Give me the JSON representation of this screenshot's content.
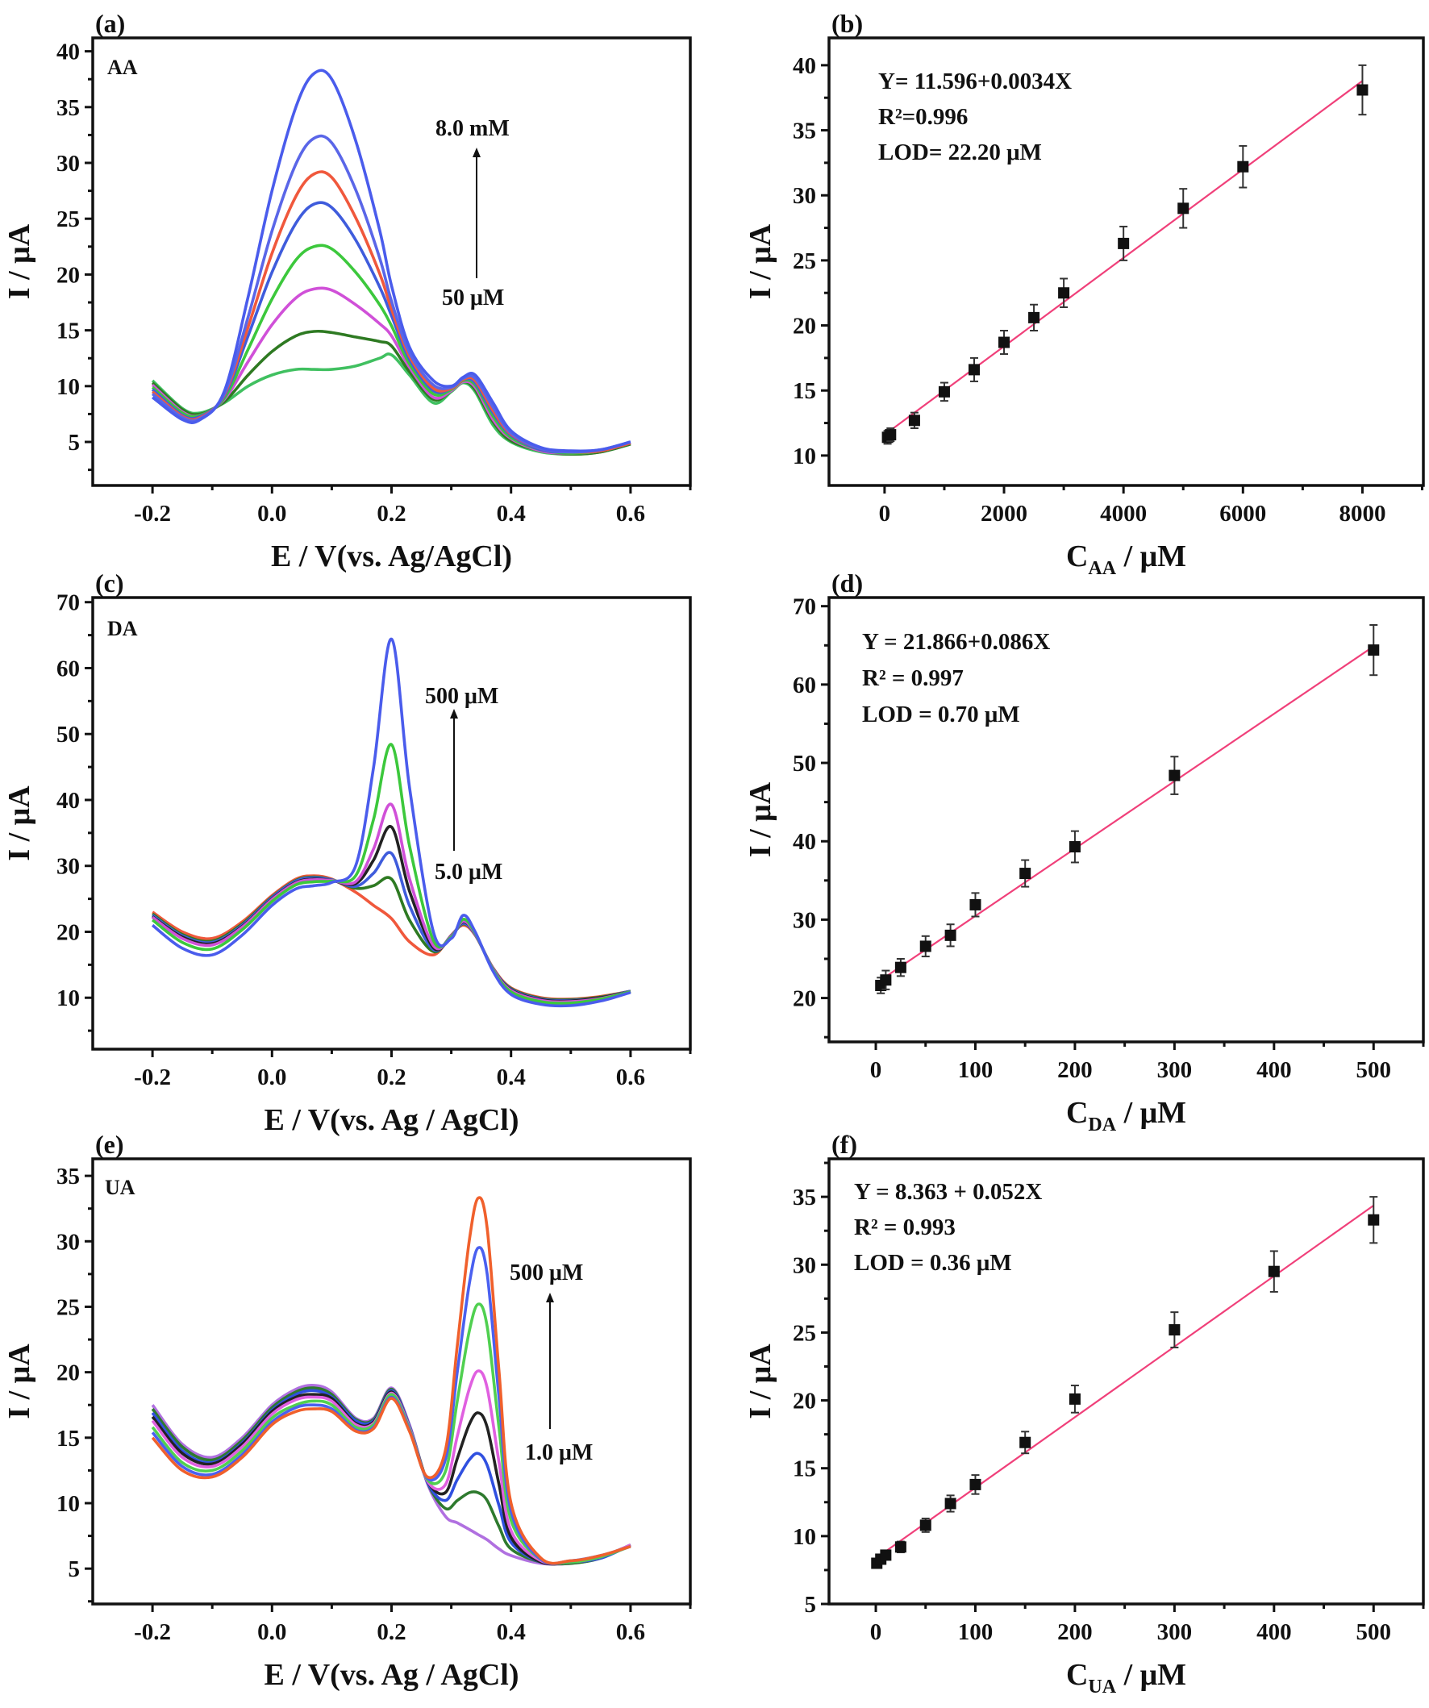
{
  "colors": {
    "fit_line": "#f0407a",
    "marker": "#111111",
    "frame": "#111111"
  },
  "chart_data": [
    {
      "panel": "(a)",
      "type": "line",
      "annotation": "AA",
      "xlabel": "E / V(vs. Ag/AgCl)",
      "ylabel": "I / μA",
      "xlim": [
        -0.3,
        0.7
      ],
      "ylim": [
        1.1,
        41.2
      ],
      "xticks": [
        -0.2,
        0.0,
        0.2,
        0.4,
        0.6
      ],
      "xtick_labels": [
        "-0.2",
        "0.0",
        "0.2",
        "0.4",
        "0.6"
      ],
      "yticks": [
        5,
        10,
        15,
        20,
        25,
        30,
        35,
        40
      ],
      "ytick_labels": [
        "5",
        "10",
        "15",
        "20",
        "25",
        "30",
        "35",
        "40"
      ],
      "arrow_top_label": "8.0 mM",
      "arrow_bottom_label": "50 μM",
      "x": [
        -0.2,
        -0.15,
        -0.12,
        -0.08,
        -0.04,
        0,
        0.04,
        0.07,
        0.1,
        0.14,
        0.18,
        0.2,
        0.23,
        0.27,
        0.3,
        0.32,
        0.34,
        0.37,
        0.4,
        0.45,
        0.5,
        0.55,
        0.6
      ],
      "series": [
        {
          "color": "#4a5cec",
          "y": [
            9,
            7,
            7,
            9.5,
            18,
            27.5,
            35,
            38,
            37.5,
            32,
            24,
            19,
            13.5,
            10.5,
            10,
            10.8,
            11,
            8.5,
            6,
            4.5,
            4.2,
            4.3,
            5
          ]
        },
        {
          "color": "#5a66e8",
          "y": [
            9.3,
            7.2,
            7.1,
            9.3,
            16.2,
            23.9,
            29.9,
            32.2,
            31.8,
            27.6,
            21.5,
            17.6,
            13,
            10.1,
            9.9,
            10.7,
            10.7,
            8.1,
            5.8,
            4.4,
            4.1,
            4.3,
            5
          ]
        },
        {
          "color": "#f0583c",
          "y": [
            9.5,
            7.3,
            7.2,
            9.2,
            15.3,
            21.9,
            27,
            29,
            28.7,
            25.1,
            20.1,
            16.9,
            12.7,
            9.8,
            9.8,
            10.6,
            10.5,
            7.8,
            5.7,
            4.4,
            4.1,
            4.2,
            4.9
          ]
        },
        {
          "color": "#3f5cdc",
          "y": [
            9.7,
            7.4,
            7.3,
            9.1,
            14.5,
            20.2,
            24.6,
            26.3,
            26,
            23.1,
            18.9,
            16.3,
            12.4,
            9.6,
            9.8,
            10.6,
            10.3,
            7.6,
            5.6,
            4.3,
            4.1,
            4.2,
            4.9
          ]
        },
        {
          "color": "#3cc83c",
          "y": [
            9.9,
            7.6,
            7.4,
            8.9,
            13.3,
            17.8,
            21.3,
            22.5,
            22.3,
            20.2,
            17.3,
            15.4,
            12,
            9.3,
            9.7,
            10.5,
            10.1,
            7.3,
            5.4,
            4.3,
            4,
            4.2,
            4.9
          ]
        },
        {
          "color": "#d050d8",
          "y": [
            10.1,
            7.7,
            7.4,
            8.8,
            12.2,
            15.5,
            17.9,
            18.7,
            18.6,
            17.3,
            15.6,
            14.5,
            11.7,
            9,
            9.6,
            10.4,
            9.9,
            7,
            5.3,
            4.2,
            4,
            4.2,
            4.9
          ]
        },
        {
          "color": "#2e7a22",
          "y": [
            10.3,
            7.9,
            7.5,
            8.6,
            11,
            13.1,
            14.5,
            14.9,
            14.8,
            14.4,
            14,
            13.6,
            11.3,
            8.8,
            9.6,
            10.4,
            9.7,
            6.8,
            5.1,
            4.2,
            3.9,
            4.1,
            4.8
          ]
        },
        {
          "color": "#40c060",
          "y": [
            10.5,
            8,
            7.6,
            8.5,
            10,
            11,
            11.5,
            11.5,
            11.5,
            11.8,
            12.5,
            12.8,
            11,
            8.5,
            9.5,
            10.3,
            9.5,
            6.5,
            5,
            4.1,
            3.9,
            4.1,
            4.8
          ]
        }
      ]
    },
    {
      "panel": "(b)",
      "type": "scatter",
      "xlabel": {
        "main": "C",
        "sub": "AA",
        "suffix": " / μM"
      },
      "ylabel": "I / μA",
      "xlim": [
        -930,
        9020
      ],
      "ylim": [
        7.7,
        42.1
      ],
      "xticks": [
        0,
        2000,
        4000,
        6000,
        8000
      ],
      "xtick_labels": [
        "0",
        "2000",
        "4000",
        "6000",
        "8000"
      ],
      "yticks": [
        10,
        15,
        20,
        25,
        30,
        35,
        40
      ],
      "ytick_labels": [
        "10",
        "15",
        "20",
        "25",
        "30",
        "35",
        "40"
      ],
      "equation": [
        "Y= 11.596+0.0034X",
        "R²=0.996",
        "LOD= 22.20 μM"
      ],
      "fit": {
        "intercept": 11.596,
        "slope": 0.0034,
        "x_range": [
          0,
          8000
        ]
      },
      "x": [
        50,
        100,
        500,
        1000,
        1500,
        2000,
        2500,
        3000,
        4000,
        5000,
        6000,
        8000
      ],
      "y": [
        11.4,
        11.6,
        12.7,
        14.9,
        16.6,
        18.7,
        20.6,
        22.5,
        26.3,
        29.0,
        32.2,
        38.1
      ],
      "err": [
        0.5,
        0.5,
        0.6,
        0.7,
        0.9,
        0.9,
        1.0,
        1.1,
        1.3,
        1.5,
        1.6,
        1.9
      ]
    },
    {
      "panel": "(c)",
      "type": "line",
      "annotation": "DA",
      "xlabel": "E / V(vs. Ag / AgCl)",
      "ylabel": "I / μA",
      "xlim": [
        -0.3,
        0.7
      ],
      "ylim": [
        2.2,
        70.7
      ],
      "xticks": [
        -0.2,
        0.0,
        0.2,
        0.4,
        0.6
      ],
      "xtick_labels": [
        "-0.2",
        "0.0",
        "0.2",
        "0.4",
        "0.6"
      ],
      "yticks": [
        10,
        20,
        30,
        40,
        50,
        60,
        70
      ],
      "ytick_labels": [
        "10",
        "20",
        "30",
        "40",
        "50",
        "60",
        "70"
      ],
      "arrow_top_label": "500 μM",
      "arrow_bottom_label": "5.0 μM",
      "x": [
        -0.2,
        -0.15,
        -0.1,
        -0.05,
        0,
        0.04,
        0.07,
        0.1,
        0.14,
        0.17,
        0.2,
        0.23,
        0.27,
        0.3,
        0.32,
        0.34,
        0.37,
        0.4,
        0.45,
        0.5,
        0.55,
        0.6
      ],
      "series": [
        {
          "color": "#4a5cec",
          "y": [
            21,
            17.5,
            16.5,
            19.5,
            24,
            26.5,
            27,
            27.5,
            30,
            45,
            64.4,
            42,
            20,
            19,
            22.5,
            20,
            14,
            10.5,
            9,
            8.8,
            9.5,
            10.8
          ]
        },
        {
          "color": "#3cc83c",
          "y": [
            21.8,
            18.4,
            17.4,
            20.3,
            24.6,
            27.1,
            27.6,
            27.7,
            28.5,
            37.1,
            48.4,
            33.1,
            18.7,
            19.2,
            21.9,
            19.8,
            14.2,
            10.9,
            9.4,
            9.2,
            9.8,
            10.9
          ]
        },
        {
          "color": "#d050d8",
          "y": [
            22.2,
            19,
            18,
            20.7,
            24.9,
            27.4,
            27.9,
            27.8,
            27.6,
            32.6,
            39.3,
            28.1,
            17.9,
            19.3,
            21.6,
            19.7,
            14.3,
            11.1,
            9.6,
            9.4,
            9.9,
            10.9
          ]
        },
        {
          "color": "#222222",
          "y": [
            22.3,
            19.2,
            18.2,
            20.8,
            25,
            27.5,
            28,
            27.8,
            27.3,
            30.9,
            35.9,
            26.2,
            17.6,
            19.3,
            21.5,
            19.7,
            14.3,
            11.2,
            9.7,
            9.5,
            10,
            10.9
          ]
        },
        {
          "color": "#3f5cdc",
          "y": [
            22.5,
            19.4,
            18.4,
            21,
            25.2,
            27.7,
            28.2,
            27.9,
            26.9,
            28.9,
            31.9,
            24,
            17.3,
            19.4,
            21.3,
            19.6,
            14.4,
            11.3,
            9.8,
            9.6,
            10,
            11
          ]
        },
        {
          "color": "#2e7a22",
          "y": [
            22.7,
            19.6,
            18.6,
            21.2,
            25.3,
            27.8,
            28.3,
            27.9,
            26.6,
            27,
            28,
            21.8,
            17,
            19.4,
            21.2,
            19.6,
            14.4,
            11.4,
            9.9,
            9.7,
            10.1,
            11
          ]
        },
        {
          "color": "#f0583c",
          "y": [
            23,
            20,
            19,
            21.5,
            25.5,
            28,
            28.5,
            28,
            26,
            24,
            22,
            18.5,
            16.5,
            19.5,
            21,
            19.5,
            14.5,
            11.5,
            10,
            9.8,
            10.2,
            11
          ]
        }
      ]
    },
    {
      "panel": "(d)",
      "type": "scatter",
      "xlabel": {
        "main": "C",
        "sub": "DA",
        "suffix": " / μM"
      },
      "ylabel": "I / μA",
      "xlim": [
        -47,
        550
      ],
      "ylim": [
        14.4,
        71.1
      ],
      "xticks": [
        0,
        100,
        200,
        300,
        400,
        500
      ],
      "xtick_labels": [
        "0",
        "100",
        "200",
        "300",
        "400",
        "500"
      ],
      "yticks": [
        20,
        30,
        40,
        50,
        60,
        70
      ],
      "ytick_labels": [
        "20",
        "30",
        "40",
        "50",
        "60",
        "70"
      ],
      "equation": [
        "Y = 21.866+0.086X",
        "R² = 0.997",
        "LOD = 0.70 μM"
      ],
      "fit": {
        "intercept": 21.866,
        "slope": 0.086,
        "x_range": [
          5,
          500
        ]
      },
      "x": [
        5,
        10,
        25,
        50,
        75,
        100,
        150,
        200,
        300,
        500
      ],
      "y": [
        21.6,
        22.3,
        23.9,
        26.6,
        28.0,
        31.9,
        35.9,
        39.3,
        48.4,
        64.4
      ],
      "err": [
        1.0,
        1.2,
        1.1,
        1.3,
        1.4,
        1.5,
        1.7,
        2.0,
        2.4,
        3.2
      ]
    },
    {
      "panel": "(e)",
      "type": "line",
      "annotation": "UA",
      "xlabel": "E / V(vs. Ag / AgCl)",
      "ylabel": "I / μA",
      "xlim": [
        -0.3,
        0.7
      ],
      "ylim": [
        2.3,
        36.3
      ],
      "xticks": [
        -0.2,
        0.0,
        0.2,
        0.4,
        0.6
      ],
      "xtick_labels": [
        "-0.2",
        "0.0",
        "0.2",
        "0.4",
        "0.6"
      ],
      "yticks": [
        5,
        10,
        15,
        20,
        25,
        30,
        35
      ],
      "ytick_labels": [
        "5",
        "10",
        "15",
        "20",
        "25",
        "30",
        "35"
      ],
      "arrow_top_label": "500 μM",
      "arrow_bottom_label": "1.0 μM",
      "x": [
        -0.2,
        -0.15,
        -0.1,
        -0.05,
        0,
        0.04,
        0.07,
        0.1,
        0.14,
        0.17,
        0.2,
        0.23,
        0.26,
        0.29,
        0.31,
        0.33,
        0.345,
        0.36,
        0.38,
        0.4,
        0.45,
        0.5,
        0.55,
        0.6
      ],
      "series": [
        {
          "color": "#f0602c",
          "y": [
            15,
            12.5,
            12,
            13.5,
            16,
            17,
            17.2,
            17,
            15.5,
            15.7,
            18,
            15.5,
            12,
            14,
            22,
            30,
            33.3,
            31,
            20,
            10,
            5.8,
            5.6,
            6,
            6.7
          ]
        },
        {
          "color": "#4a60f0",
          "y": [
            15.4,
            12.8,
            12.2,
            13.7,
            16.2,
            17.3,
            17.5,
            17.2,
            15.6,
            15.8,
            18.1,
            15.6,
            11.9,
            13.3,
            20,
            26.7,
            29.5,
            27.5,
            18,
            9.4,
            5.7,
            5.6,
            6,
            6.7
          ]
        },
        {
          "color": "#50d050",
          "y": [
            15.8,
            13.1,
            12.5,
            14,
            16.5,
            17.5,
            17.8,
            17.5,
            15.8,
            16,
            18.3,
            15.7,
            11.8,
            12.4,
            17.8,
            23.1,
            25.2,
            23.5,
            15.7,
            8.7,
            5.7,
            5.5,
            5.9,
            6.7
          ]
        },
        {
          "color": "#e060e0",
          "y": [
            16.3,
            13.5,
            12.8,
            14.3,
            16.8,
            17.9,
            18.1,
            17.8,
            16,
            16.1,
            18.4,
            15.8,
            11.7,
            11.4,
            15.1,
            18.7,
            20.1,
            18.8,
            13.1,
            7.9,
            5.6,
            5.5,
            5.9,
            6.8
          ]
        },
        {
          "color": "#222222",
          "y": [
            16.6,
            13.8,
            13,
            14.5,
            17,
            18.1,
            18.3,
            18,
            16.1,
            16.2,
            18.5,
            15.8,
            11.7,
            10.8,
            13.4,
            16,
            16.9,
            15.8,
            11.4,
            7.4,
            5.5,
            5.5,
            5.9,
            6.8
          ]
        },
        {
          "color": "#3050e0",
          "y": [
            16.9,
            14,
            13.1,
            14.6,
            17.1,
            18.3,
            18.6,
            18.1,
            16.3,
            16.3,
            18.6,
            15.9,
            11.6,
            10.2,
            11.8,
            13.3,
            13.8,
            12.9,
            9.8,
            7,
            5.5,
            5.5,
            5.8,
            6.8
          ]
        },
        {
          "color": "#2e7a2e",
          "y": [
            17.2,
            14.3,
            13.3,
            14.8,
            17.3,
            18.5,
            18.8,
            18.3,
            16.4,
            16.4,
            18.7,
            15.9,
            11.6,
            9.6,
            10.2,
            10.8,
            10.8,
            10.2,
            8.2,
            6.5,
            5.5,
            5.4,
            5.8,
            6.8
          ]
        },
        {
          "color": "#b070e0",
          "y": [
            17.5,
            14.5,
            13.5,
            15,
            17.5,
            18.7,
            19,
            18.5,
            16.5,
            16.5,
            18.8,
            16,
            11.5,
            9,
            8.5,
            8,
            7.6,
            7.2,
            6.5,
            6,
            5.4,
            5.4,
            5.8,
            6.8
          ]
        }
      ]
    },
    {
      "panel": "(f)",
      "type": "scatter",
      "xlabel": {
        "main": "C",
        "sub": "UA",
        "suffix": " / μM"
      },
      "ylabel": "I / μA",
      "xlim": [
        -47,
        550
      ],
      "ylim": [
        5,
        37.8
      ],
      "xticks": [
        0,
        100,
        200,
        300,
        400,
        500
      ],
      "xtick_labels": [
        "0",
        "100",
        "200",
        "300",
        "400",
        "500"
      ],
      "yticks": [
        5,
        10,
        15,
        20,
        25,
        30,
        35
      ],
      "ytick_labels": [
        "5",
        "10",
        "15",
        "20",
        "25",
        "30",
        "35"
      ],
      "equation": [
        "Y = 8.363 + 0.052X",
        "R² = 0.993",
        "LOD = 0.36 μM"
      ],
      "fit": {
        "intercept": 8.363,
        "slope": 0.052,
        "x_range": [
          1,
          500
        ]
      },
      "x": [
        1,
        5,
        10,
        25,
        50,
        75,
        100,
        150,
        200,
        300,
        400,
        500
      ],
      "y": [
        8.0,
        8.3,
        8.6,
        9.2,
        10.8,
        12.4,
        13.8,
        16.9,
        20.1,
        25.2,
        29.5,
        33.3
      ],
      "err": [
        0.3,
        0.3,
        0.3,
        0.4,
        0.5,
        0.6,
        0.7,
        0.8,
        1.0,
        1.3,
        1.5,
        1.7
      ]
    }
  ]
}
